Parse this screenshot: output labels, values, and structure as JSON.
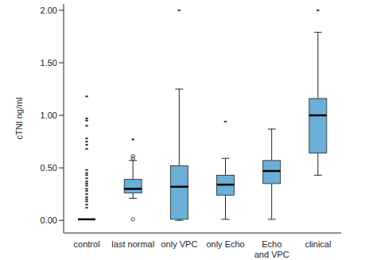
{
  "chart_data": {
    "type": "box",
    "y_label": "cTNI ng/ml",
    "categories": [
      "control",
      "last normal",
      "only VPC",
      "only Echo",
      "Echo and VPC",
      "clinical"
    ],
    "min": [
      0.01,
      0.21,
      0.0,
      0.01,
      0.01,
      0.43
    ],
    "q1": [
      0.01,
      0.26,
      0.01,
      0.24,
      0.35,
      0.64
    ],
    "median": [
      0.01,
      0.3,
      0.32,
      0.34,
      0.47,
      1.0
    ],
    "q3": [
      0.01,
      0.39,
      0.52,
      0.43,
      0.57,
      1.16
    ],
    "max": [
      0.01,
      0.57,
      1.25,
      0.59,
      0.87,
      1.79
    ],
    "outliers": [
      [],
      [
        0.61,
        0.59,
        0.01
      ],
      [],
      [],
      [],
      []
    ],
    "extremes": [
      [
        1.18,
        0.97,
        0.95,
        0.9,
        0.78,
        0.75,
        0.72,
        0.68,
        0.48,
        0.45,
        0.43,
        0.4,
        0.37,
        0.35,
        0.33,
        0.3,
        0.28,
        0.25,
        0.22,
        0.2,
        0.18,
        0.15,
        0.12
      ],
      [
        0.77
      ],
      [
        2.0
      ],
      [
        0.94
      ],
      [],
      [
        2.0
      ]
    ],
    "color": "#6baed6",
    "ylim": [
      -0.12,
      2.06
    ],
    "yticks": [
      {
        "value": 0,
        "label": "0.00"
      },
      {
        "value": 0.5,
        "label": "0.50"
      },
      {
        "value": 1,
        "label": "1.00"
      },
      {
        "value": 1.5,
        "label": "1.50"
      },
      {
        "value": 2,
        "label": "2.00"
      }
    ]
  }
}
